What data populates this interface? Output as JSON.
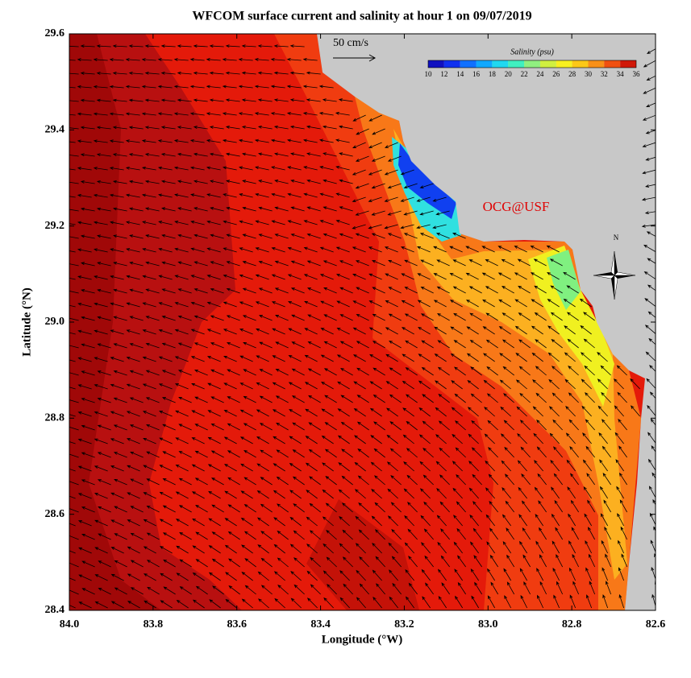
{
  "title": "WFCOM surface current and salinity at hour 1 on 09/07/2019",
  "x_axis": {
    "label": "Longitude (°W)",
    "lim": [
      84.0,
      82.6
    ],
    "ticks": [
      {
        "value": 84.0,
        "label": "84.0"
      },
      83.8,
      83.6,
      83.4,
      83.2,
      {
        "value": 83.0,
        "label": "83.0"
      },
      82.8,
      82.6
    ]
  },
  "y_axis": {
    "label": "Latitude (°N)",
    "lim": [
      28.4,
      29.6
    ],
    "ticks": [
      28.4,
      28.6,
      28.8,
      {
        "value": 29.0,
        "label": "29.0"
      },
      29.2,
      29.4,
      29.6
    ]
  },
  "scale_arrow": {
    "label": "50 cm/s"
  },
  "colorbar": {
    "title": "Salinity (psu)",
    "lim": [
      10,
      36
    ],
    "ticks": [
      10,
      12,
      14,
      16,
      18,
      20,
      22,
      24,
      26,
      28,
      30,
      32,
      34,
      36
    ],
    "colors": [
      "#1010c0",
      "#1030f0",
      "#1070ff",
      "#10a8ff",
      "#20d8f0",
      "#40f0c0",
      "#90f080",
      "#d0f040",
      "#f8f020",
      "#fcc818",
      "#f89018",
      "#f05010",
      "#d01808"
    ]
  },
  "credit": "OCG@USF",
  "compass": "N"
}
